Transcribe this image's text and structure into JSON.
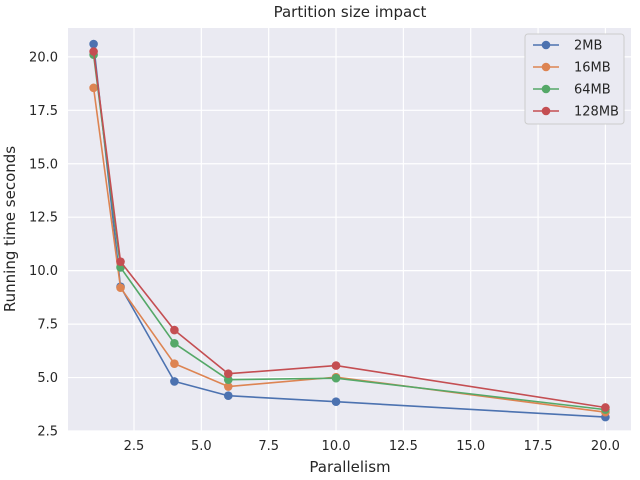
{
  "chart_data": {
    "type": "line",
    "title": "Partition size impact",
    "xlabel": "Parallelism",
    "ylabel": "Running time seconds",
    "xlim": [
      0.05,
      20.95
    ],
    "ylim": [
      2.5,
      21.35
    ],
    "xticks": [
      2.5,
      5.0,
      7.5,
      10.0,
      12.5,
      15.0,
      17.5,
      20.0
    ],
    "xtick_labels": [
      "2.5",
      "5.0",
      "7.5",
      "10.0",
      "12.5",
      "15.0",
      "17.5",
      "20.0"
    ],
    "yticks": [
      2.5,
      5.0,
      7.5,
      10.0,
      12.5,
      15.0,
      17.5,
      20.0
    ],
    "ytick_labels": [
      "2.5",
      "5.0",
      "7.5",
      "10.0",
      "12.5",
      "15.0",
      "17.5",
      "20.0"
    ],
    "grid": true,
    "legend_position": "top-right",
    "x": [
      1,
      2,
      4,
      6,
      10,
      20
    ],
    "series": [
      {
        "name": "2MB",
        "color": "#4c72b0",
        "values": [
          20.6,
          9.25,
          4.82,
          4.15,
          3.87,
          3.15
        ]
      },
      {
        "name": "16MB",
        "color": "#dd8452",
        "values": [
          18.55,
          9.2,
          5.65,
          4.58,
          5.02,
          3.38
        ]
      },
      {
        "name": "64MB",
        "color": "#55a868",
        "values": [
          20.1,
          10.15,
          6.6,
          4.9,
          4.97,
          3.5
        ]
      },
      {
        "name": "128MB",
        "color": "#c44e52",
        "values": [
          20.25,
          10.42,
          7.22,
          5.18,
          5.56,
          3.6
        ]
      }
    ]
  }
}
